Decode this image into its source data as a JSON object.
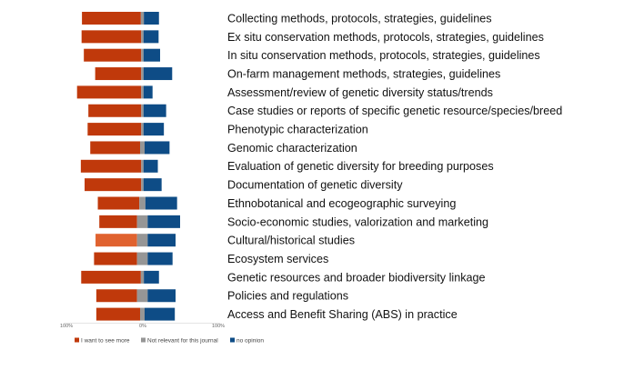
{
  "chart_data": {
    "type": "bar",
    "orientation": "horizontal",
    "stacked": "diverging",
    "title": "",
    "xlabel": "",
    "ylabel": "",
    "xlim": [
      -100,
      100
    ],
    "xticks": [
      "100%",
      "0%",
      "100%"
    ],
    "grid": false,
    "legend_position": "bottom-left",
    "categories": [
      "Collecting methods, protocols, strategies, guidelines",
      "Ex situ conservation methods, protocols, strategies, guidelines",
      "In situ conservation methods, protocols, strategies, guidelines",
      "On-farm management methods, strategies, guidelines",
      "Assessment/review of genetic diversity status/trends",
      "Case studies or reports of specific genetic resource/species/breed",
      "Phenotypic characterization",
      "Genomic characterization",
      "Evaluation of genetic diversity for breeding purposes",
      "Documentation of genetic diversity",
      "Ethnobotanical and ecogeographic surveying",
      "Socio-economic studies, valorization and marketing",
      "Cultural/historical studies",
      "Ecosystem services",
      "Genetic resources and broader biodiversity linkage",
      "Policies and regulations",
      "Access and Benefit Sharing (ABS) in practice"
    ],
    "series": [
      {
        "name": "I want to see more",
        "color": "#c0390b",
        "values": [
          78,
          79,
          76,
          61,
          85,
          70,
          71,
          66,
          80,
          75,
          55,
          50,
          55,
          57,
          79,
          54,
          58
        ]
      },
      {
        "name": "Not relevant for this journal",
        "color": "#969696",
        "values": [
          4,
          3,
          3,
          3,
          3,
          3,
          3,
          6,
          3,
          3,
          8,
          14,
          14,
          14,
          4,
          14,
          6
        ]
      },
      {
        "name": "no opinion",
        "color": "#0e4c86",
        "values": [
          20,
          20,
          22,
          38,
          12,
          30,
          27,
          33,
          19,
          24,
          42,
          43,
          37,
          33,
          20,
          37,
          40
        ]
      }
    ]
  }
}
